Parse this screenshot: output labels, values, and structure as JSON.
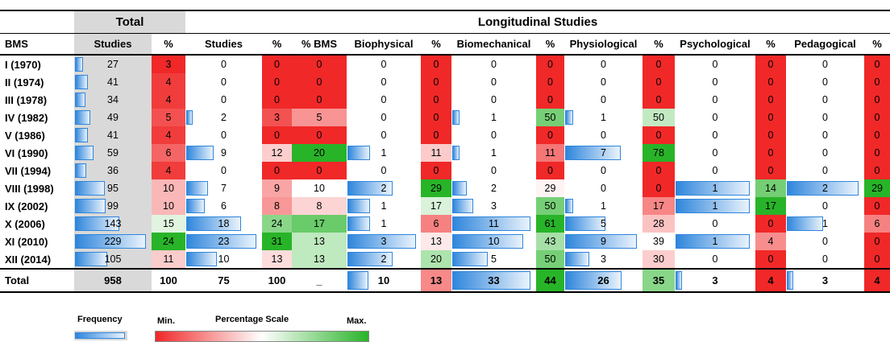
{
  "header": {
    "total": "Total",
    "longitudinal": "Longitudinal Studies"
  },
  "columns": [
    "BMS",
    "Studies",
    "%",
    "Studies",
    "%",
    "% BMS",
    "Biophysical",
    "%",
    "Biomechanical",
    "%",
    "Physiological",
    "%",
    "Psychological",
    "%",
    "Pedagogical",
    "%"
  ],
  "rows": [
    [
      "I (1970)",
      27,
      3,
      0,
      0,
      0,
      0,
      0,
      0,
      0,
      0,
      0,
      0,
      0,
      0,
      0
    ],
    [
      "II (1974)",
      41,
      4,
      0,
      0,
      0,
      0,
      0,
      0,
      0,
      0,
      0,
      0,
      0,
      0,
      0
    ],
    [
      "III (1978)",
      34,
      4,
      0,
      0,
      0,
      0,
      0,
      0,
      0,
      0,
      0,
      0,
      0,
      0,
      0
    ],
    [
      "IV (1982)",
      49,
      5,
      2,
      3,
      5,
      0,
      0,
      1,
      50,
      1,
      50,
      0,
      0,
      0,
      0
    ],
    [
      "V (1986)",
      41,
      4,
      0,
      0,
      0,
      0,
      0,
      0,
      0,
      0,
      0,
      0,
      0,
      0,
      0
    ],
    [
      "VI (1990)",
      59,
      6,
      9,
      12,
      20,
      1,
      11,
      1,
      11,
      7,
      78,
      0,
      0,
      0,
      0
    ],
    [
      "VII (1994)",
      36,
      4,
      0,
      0,
      0,
      0,
      0,
      0,
      0,
      0,
      0,
      0,
      0,
      0,
      0
    ],
    [
      "VIII (1998)",
      95,
      10,
      7,
      9,
      10,
      2,
      29,
      2,
      29,
      0,
      0,
      1,
      14,
      2,
      29
    ],
    [
      "IX (2002)",
      99,
      10,
      6,
      8,
      8,
      1,
      17,
      3,
      50,
      1,
      17,
      1,
      17,
      0,
      0
    ],
    [
      "X (2006)",
      143,
      15,
      18,
      24,
      17,
      1,
      6,
      11,
      61,
      5,
      28,
      0,
      0,
      1,
      6
    ],
    [
      "XI (2010)",
      229,
      24,
      23,
      31,
      13,
      3,
      13,
      10,
      43,
      9,
      39,
      1,
      4,
      0,
      0
    ],
    [
      "XII (2014)",
      105,
      11,
      10,
      13,
      13,
      2,
      20,
      5,
      50,
      3,
      30,
      0,
      0,
      0,
      0
    ]
  ],
  "total": [
    "Total",
    958,
    100,
    75,
    100,
    "_",
    10,
    13,
    33,
    44,
    26,
    35,
    3,
    4,
    3,
    4
  ],
  "legend": {
    "frequency": "Frequency",
    "min": "Min.",
    "scale": "Percentage Scale",
    "max": "Max."
  }
}
